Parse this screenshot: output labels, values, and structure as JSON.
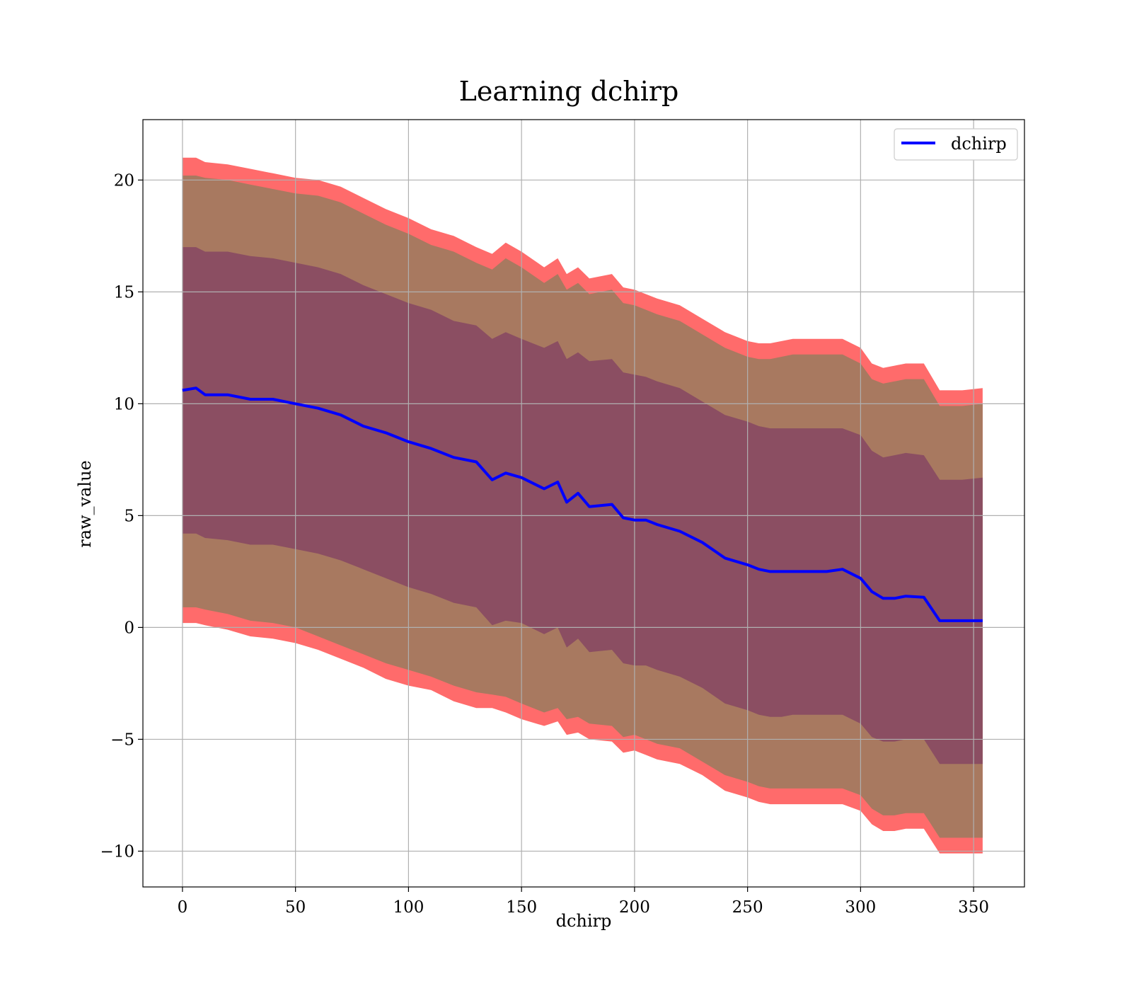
{
  "chart_data": {
    "type": "area",
    "title": "Learning dchirp",
    "xlabel": "dchirp",
    "ylabel": "raw_value",
    "xlim": [
      -17.5,
      372.5
    ],
    "ylim": [
      -11.6,
      22.7
    ],
    "x_ticks": [
      0,
      50,
      100,
      150,
      200,
      250,
      300,
      350
    ],
    "x_tick_labels": [
      "0",
      "50",
      "100",
      "150",
      "200",
      "250",
      "300",
      "350"
    ],
    "y_ticks": [
      -10,
      -5,
      0,
      5,
      10,
      15,
      20
    ],
    "y_tick_labels": [
      "−10",
      "−5",
      "0",
      "5",
      "10",
      "15",
      "20"
    ],
    "grid": true,
    "legend": {
      "position": "top-right",
      "entries": [
        "dchirp"
      ]
    },
    "colors": {
      "line": "#0000ff",
      "band_outer": "#ff6b6b",
      "band_middle": "#a87960",
      "band_inner": "#8b4e62",
      "grid": "#b0b0b0"
    },
    "x": [
      0,
      6,
      10,
      20,
      30,
      40,
      50,
      60,
      70,
      80,
      90,
      100,
      110,
      120,
      130,
      137,
      143,
      150,
      160,
      166,
      170,
      175,
      180,
      190,
      195,
      200,
      205,
      210,
      220,
      230,
      240,
      250,
      255,
      260,
      265,
      270,
      280,
      285,
      292,
      300,
      305,
      310,
      315,
      320,
      328,
      335,
      340,
      345,
      354
    ],
    "series": [
      {
        "name": "dchirp",
        "values": [
          10.6,
          10.7,
          10.4,
          10.4,
          10.2,
          10.2,
          10.0,
          9.8,
          9.5,
          9.0,
          8.7,
          8.3,
          8.0,
          7.6,
          7.4,
          6.6,
          6.9,
          6.7,
          6.2,
          6.5,
          5.6,
          6.0,
          5.4,
          5.5,
          4.9,
          4.8,
          4.8,
          4.6,
          4.3,
          3.8,
          3.1,
          2.8,
          2.6,
          2.5,
          2.5,
          2.5,
          2.5,
          2.5,
          2.6,
          2.2,
          1.6,
          1.3,
          1.3,
          1.4,
          1.35,
          0.3,
          0.3,
          0.3,
          0.3
        ]
      }
    ],
    "bands": [
      {
        "lower": [
          0.2,
          0.2,
          0.1,
          -0.1,
          -0.4,
          -0.5,
          -0.7,
          -1.0,
          -1.4,
          -1.8,
          -2.3,
          -2.6,
          -2.8,
          -3.3,
          -3.6,
          -3.6,
          -3.8,
          -4.1,
          -4.4,
          -4.2,
          -4.8,
          -4.7,
          -5.0,
          -5.1,
          -5.6,
          -5.5,
          -5.7,
          -5.9,
          -6.1,
          -6.6,
          -7.3,
          -7.6,
          -7.8,
          -7.9,
          -7.9,
          -7.9,
          -7.9,
          -7.9,
          -7.9,
          -8.2,
          -8.8,
          -9.1,
          -9.1,
          -9.0,
          -9.0,
          -10.1,
          -10.1,
          -10.1,
          -10.1
        ],
        "upper": [
          21.0,
          21.0,
          20.8,
          20.7,
          20.5,
          20.3,
          20.1,
          20.0,
          19.7,
          19.2,
          18.7,
          18.3,
          17.8,
          17.5,
          17.0,
          16.7,
          17.2,
          16.8,
          16.1,
          16.5,
          15.8,
          16.1,
          15.6,
          15.8,
          15.2,
          15.1,
          14.9,
          14.7,
          14.4,
          13.8,
          13.2,
          12.8,
          12.7,
          12.7,
          12.8,
          12.9,
          12.9,
          12.9,
          12.9,
          12.5,
          11.8,
          11.6,
          11.7,
          11.8,
          11.8,
          10.6,
          10.6,
          10.6,
          10.7
        ],
        "color": "band_outer"
      },
      {
        "lower": [
          0.9,
          0.9,
          0.8,
          0.6,
          0.3,
          0.2,
          0.0,
          -0.4,
          -0.8,
          -1.2,
          -1.6,
          -1.9,
          -2.2,
          -2.6,
          -2.9,
          -3.0,
          -3.1,
          -3.4,
          -3.8,
          -3.6,
          -4.1,
          -4.0,
          -4.3,
          -4.4,
          -4.9,
          -4.8,
          -5.0,
          -5.2,
          -5.4,
          -6.0,
          -6.6,
          -6.9,
          -7.1,
          -7.2,
          -7.2,
          -7.2,
          -7.2,
          -7.2,
          -7.2,
          -7.5,
          -8.1,
          -8.4,
          -8.4,
          -8.3,
          -8.3,
          -9.4,
          -9.4,
          -9.4,
          -9.4
        ],
        "upper": [
          20.2,
          20.2,
          20.1,
          20.0,
          19.8,
          19.6,
          19.4,
          19.3,
          19.0,
          18.5,
          18.0,
          17.6,
          17.1,
          16.8,
          16.3,
          16.0,
          16.5,
          16.1,
          15.4,
          15.8,
          15.1,
          15.4,
          14.9,
          15.1,
          14.5,
          14.4,
          14.2,
          14.0,
          13.7,
          13.1,
          12.5,
          12.1,
          12.0,
          12.0,
          12.1,
          12.2,
          12.2,
          12.2,
          12.2,
          11.8,
          11.1,
          10.9,
          11.0,
          11.1,
          11.1,
          9.9,
          9.9,
          9.9,
          10.0
        ],
        "color": "band_middle"
      },
      {
        "lower": [
          4.2,
          4.2,
          4.0,
          3.9,
          3.7,
          3.7,
          3.5,
          3.3,
          3.0,
          2.6,
          2.2,
          1.8,
          1.5,
          1.1,
          0.9,
          0.1,
          0.3,
          0.2,
          -0.3,
          0.0,
          -0.9,
          -0.5,
          -1.1,
          -1.0,
          -1.6,
          -1.7,
          -1.7,
          -1.9,
          -2.2,
          -2.7,
          -3.4,
          -3.7,
          -3.9,
          -4.0,
          -4.0,
          -3.9,
          -3.9,
          -3.9,
          -3.9,
          -4.3,
          -4.9,
          -5.1,
          -5.1,
          -5.0,
          -5.0,
          -6.1,
          -6.1,
          -6.1,
          -6.1
        ],
        "upper": [
          17.0,
          17.0,
          16.8,
          16.8,
          16.6,
          16.5,
          16.3,
          16.1,
          15.8,
          15.3,
          14.9,
          14.5,
          14.2,
          13.7,
          13.5,
          12.9,
          13.2,
          12.9,
          12.5,
          12.8,
          12.0,
          12.3,
          11.9,
          12.0,
          11.4,
          11.3,
          11.2,
          11.0,
          10.7,
          10.1,
          9.5,
          9.2,
          9.0,
          8.9,
          8.9,
          8.9,
          8.9,
          8.9,
          8.9,
          8.6,
          7.9,
          7.6,
          7.7,
          7.8,
          7.7,
          6.6,
          6.6,
          6.6,
          6.7
        ],
        "color": "band_inner"
      }
    ]
  }
}
